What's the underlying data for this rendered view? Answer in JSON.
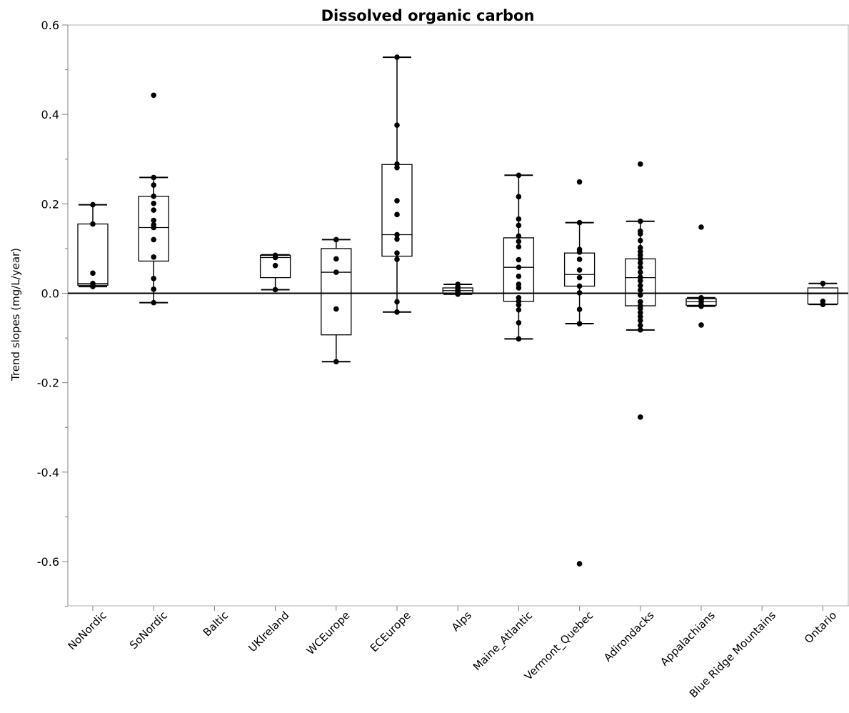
{
  "chart_data": {
    "type": "box",
    "title": "Dissolved organic carbon",
    "xlabel": "",
    "ylabel": "Trend slopes (mg/L/year)",
    "ylim": [
      -0.7,
      0.6
    ],
    "yticks": [
      "0.6",
      "0.4",
      "0.2",
      "0.0",
      "-0.2",
      "-0.4",
      "-0.6"
    ],
    "reference_line": 0.0,
    "grid": false,
    "categories": [
      "NoNordic",
      "SoNordic",
      "Baltic",
      "UKIreland",
      "WCEurope",
      "ECEurope",
      "Alps",
      "Maine_Atlantic",
      "Vermont_Quebec",
      "Adirondacks",
      "Appalachians",
      "Blue Ridge Mountains",
      "Ontario"
    ],
    "groups": [
      {
        "name": "NoNordic",
        "whisker_low": 0.015,
        "q1": 0.018,
        "median": 0.022,
        "q3": 0.155,
        "whisker_high": 0.198,
        "points": [
          0.198,
          0.155,
          0.045,
          0.022,
          0.018,
          0.015
        ]
      },
      {
        "name": "SoNordic",
        "whisker_low": -0.021,
        "q1": 0.072,
        "median": 0.147,
        "q3": 0.217,
        "whisker_high": 0.259,
        "points": [
          0.443,
          0.259,
          0.242,
          0.217,
          0.201,
          0.186,
          0.163,
          0.153,
          0.147,
          0.12,
          0.081,
          0.033,
          0.009,
          -0.021
        ]
      },
      {
        "name": "Baltic",
        "points": []
      },
      {
        "name": "UKIreland",
        "whisker_low": 0.008,
        "q1": 0.035,
        "median": 0.08,
        "q3": 0.085,
        "whisker_high": 0.086,
        "points": [
          0.085,
          0.08,
          0.062,
          0.008
        ]
      },
      {
        "name": "WCEurope",
        "whisker_low": -0.153,
        "q1": -0.093,
        "median": 0.047,
        "q3": 0.1,
        "whisker_high": 0.12,
        "points": [
          0.12,
          0.077,
          0.047,
          -0.035,
          -0.153
        ]
      },
      {
        "name": "ECEurope",
        "whisker_low": -0.042,
        "q1": 0.083,
        "median": 0.131,
        "q3": 0.288,
        "whisker_high": 0.528,
        "points": [
          0.528,
          0.376,
          0.289,
          0.281,
          0.207,
          0.176,
          0.131,
          0.121,
          0.09,
          0.076,
          -0.019,
          -0.042
        ]
      },
      {
        "name": "Alps",
        "whisker_low": -0.002,
        "q1": 0.0,
        "median": 0.006,
        "q3": 0.012,
        "whisker_high": 0.02,
        "points": [
          0.02,
          0.014,
          0.01,
          0.006,
          0.003,
          0.0,
          -0.002
        ]
      },
      {
        "name": "Maine_Atlantic",
        "whisker_low": -0.102,
        "q1": -0.018,
        "median": 0.058,
        "q3": 0.124,
        "whisker_high": 0.264,
        "points": [
          0.264,
          0.216,
          0.166,
          0.152,
          0.128,
          0.116,
          0.104,
          0.075,
          0.058,
          0.038,
          0.02,
          0.012,
          -0.01,
          -0.018,
          -0.026,
          -0.037,
          -0.066,
          -0.102
        ]
      },
      {
        "name": "Vermont_Quebec",
        "whisker_low": -0.068,
        "q1": 0.016,
        "median": 0.042,
        "q3": 0.09,
        "whisker_high": 0.158,
        "points": [
          0.249,
          0.158,
          0.098,
          0.092,
          0.076,
          0.052,
          0.035,
          0.016,
          0.001,
          -0.036,
          -0.068,
          -0.605
        ]
      },
      {
        "name": "Adirondacks",
        "whisker_low": -0.082,
        "q1": -0.028,
        "median": 0.035,
        "q3": 0.077,
        "whisker_high": 0.161,
        "points": [
          0.289,
          0.161,
          0.139,
          0.133,
          0.118,
          0.102,
          0.093,
          0.085,
          0.077,
          0.068,
          0.058,
          0.047,
          0.036,
          0.028,
          0.017,
          0.007,
          -0.004,
          -0.019,
          -0.028,
          -0.034,
          -0.043,
          -0.052,
          -0.061,
          -0.072,
          -0.082,
          -0.277
        ]
      },
      {
        "name": "Appalachians",
        "whisker_low": -0.029,
        "q1": -0.027,
        "median": -0.019,
        "q3": -0.012,
        "whisker_high": -0.01,
        "points": [
          0.148,
          -0.01,
          -0.014,
          -0.019,
          -0.025,
          -0.029,
          -0.071
        ]
      },
      {
        "name": "Blue Ridge Mountains",
        "points": []
      },
      {
        "name": "Ontario",
        "whisker_low": -0.025,
        "q1": -0.024,
        "median": -0.001,
        "q3": 0.012,
        "whisker_high": 0.022,
        "points": [
          0.022,
          -0.018,
          -0.025
        ]
      }
    ]
  }
}
